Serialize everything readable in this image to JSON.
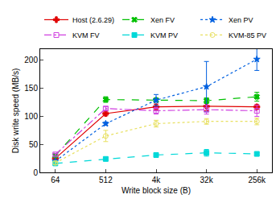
{
  "chart_data": {
    "type": "line",
    "x_label": "Write block size (B)",
    "y_label": "Disk write speed (MB/s)",
    "categories": [
      "64",
      "512",
      "4k",
      "32k",
      "256k"
    ],
    "ylim": [
      0,
      220
    ],
    "yticks": [
      0,
      50,
      100,
      150,
      200
    ],
    "grid": false,
    "legend": "top",
    "series": [
      {
        "name": "Host (2.6.29)",
        "color": "#e00000",
        "marker": "cross",
        "line_style": "solid",
        "values": [
          25,
          105,
          117,
          118,
          117
        ],
        "error": [
          2,
          4,
          5,
          8,
          4
        ]
      },
      {
        "name": "Xen FV",
        "color": "#00c000",
        "marker": "x",
        "line_style": "dash",
        "values": [
          30,
          130,
          129,
          128,
          135
        ],
        "error": [
          3,
          5,
          3,
          5,
          8
        ]
      },
      {
        "name": "Xen PV",
        "color": "#0060e0",
        "marker": "star",
        "line_style": "dot",
        "values": [
          20,
          87,
          129,
          153,
          202
        ],
        "error": [
          2,
          3,
          10,
          45,
          20
        ]
      },
      {
        "name": "KVM FV",
        "color": "#d040e0",
        "marker": "square-open",
        "line_style": "dashdot",
        "values": [
          32,
          114,
          110,
          112,
          110
        ],
        "error": [
          2,
          3,
          6,
          8,
          10
        ]
      },
      {
        "name": "KVM PV",
        "color": "#00d8d8",
        "marker": "square",
        "line_style": "dash",
        "values": [
          16,
          24,
          31,
          35,
          33
        ],
        "error": [
          2,
          3,
          4,
          6,
          2
        ]
      },
      {
        "name": "KVM-85 PV",
        "color": "#e8e060",
        "marker": "circle-open",
        "line_style": "dot",
        "values": [
          17,
          65,
          87,
          91,
          91
        ],
        "error": [
          3,
          10,
          6,
          5,
          6
        ]
      }
    ]
  }
}
